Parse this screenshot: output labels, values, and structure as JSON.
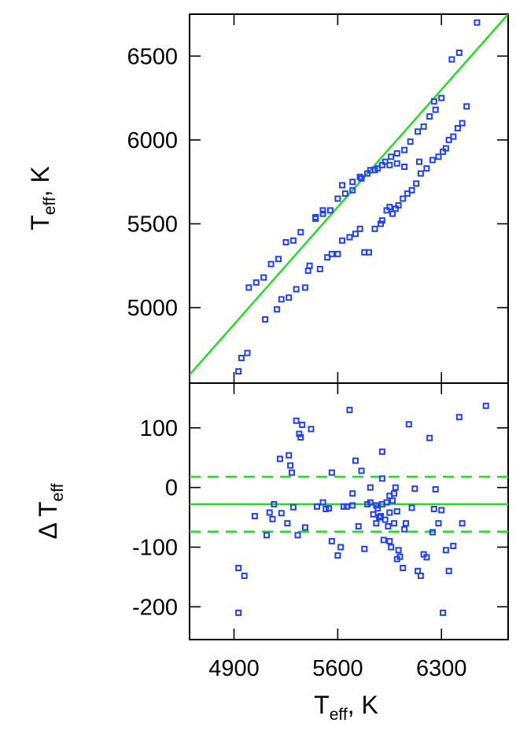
{
  "chart_data": [
    {
      "type": "scatter",
      "panel": "top",
      "ylabel": "T_eff, K",
      "ylabel_main": "T",
      "ylabel_sub": "eff",
      "ylabel_rest": ", K",
      "xlim": [
        4600,
        6750
      ],
      "ylim": [
        4550,
        6750
      ],
      "yticks": [
        "5000",
        "5500",
        "6000",
        "6500"
      ],
      "ytick_values": [
        5000,
        5500,
        6000,
        6500
      ],
      "line": {
        "type": "one-to-one",
        "color": "#22dd22"
      },
      "marker_color": "#1f3fff",
      "series": [
        {
          "x": [
            4930,
            4950,
            4990,
            5110,
            5190,
            5220,
            5270,
            5320,
            5380,
            5400,
            5410,
            5480,
            5530,
            5560,
            5600,
            5630,
            5680,
            5720,
            5750,
            5780,
            5810,
            5850,
            5890,
            5900,
            5930,
            5950,
            5970,
            5990,
            6010,
            6040,
            6070,
            6100,
            6130,
            6160,
            6200,
            6240,
            6280,
            6310,
            6330,
            6350,
            6380,
            6410,
            6440,
            6470,
            6540,
            5630,
            5700,
            5760,
            5820,
            5870,
            5920,
            5960,
            6000,
            6050,
            6090,
            6140,
            6180,
            6220,
            6260,
            6300,
            6150,
            6050,
            6000,
            5950,
            5900,
            5850,
            5800,
            5750,
            5700,
            5650,
            5600,
            5550,
            5500,
            5450,
            5350,
            5300,
            5250,
            5200,
            5150,
            5100,
            5050,
            5000,
            5450,
            5500,
            6250,
            6370,
            6420
          ],
          "y": [
            4620,
            4700,
            4730,
            4930,
            4990,
            5050,
            5060,
            5110,
            5120,
            5220,
            5250,
            5230,
            5300,
            5320,
            5320,
            5400,
            5420,
            5440,
            5470,
            5330,
            5330,
            5470,
            5500,
            5520,
            5580,
            5600,
            5560,
            5590,
            5610,
            5650,
            5680,
            5700,
            5740,
            5800,
            5830,
            5880,
            5900,
            5930,
            5950,
            6000,
            6020,
            6070,
            6100,
            6200,
            6700,
            5730,
            5750,
            5770,
            5820,
            5830,
            5870,
            5900,
            5920,
            5940,
            5990,
            6050,
            6080,
            6140,
            6180,
            6250,
            5870,
            5840,
            5860,
            5850,
            5850,
            5820,
            5800,
            5780,
            5700,
            5680,
            5650,
            5580,
            5560,
            5530,
            5450,
            5400,
            5390,
            5290,
            5260,
            5180,
            5150,
            5120,
            5540,
            5580,
            6230,
            6480,
            6520
          ]
        }
      ]
    },
    {
      "type": "scatter",
      "panel": "bottom",
      "xlabel": "T_eff, K",
      "xlabel_main": "T",
      "xlabel_sub": "eff",
      "xlabel_rest": ", K",
      "ylabel": "Δ T_eff",
      "ylabel_main": "Δ T",
      "ylabel_sub": "eff",
      "xlim": [
        4600,
        6750
      ],
      "ylim": [
        -255,
        175
      ],
      "xticks": [
        "4900",
        "5600",
        "6300"
      ],
      "xtick_values": [
        4900,
        5600,
        6300
      ],
      "yticks": [
        "-200",
        "-100",
        "0",
        "100"
      ],
      "ytick_values": [
        -200,
        -100,
        0,
        100
      ],
      "hlines": [
        {
          "y": -28,
          "style": "solid",
          "color": "#22dd22"
        },
        {
          "y": 18,
          "style": "dashed",
          "color": "#22dd22"
        },
        {
          "y": -74,
          "style": "dashed",
          "color": "#22dd22"
        }
      ],
      "marker_color": "#1f3fff",
      "series": [
        {
          "x": [
            4930,
            4930,
            4970,
            5040,
            5120,
            5140,
            5160,
            5170,
            5210,
            5220,
            5260,
            5270,
            5280,
            5290,
            5300,
            5320,
            5330,
            5340,
            5350,
            5360,
            5380,
            5420,
            5460,
            5500,
            5520,
            5540,
            5560,
            5600,
            5620,
            5640,
            5660,
            5680,
            5700,
            5720,
            5740,
            5760,
            5780,
            5800,
            5820,
            5840,
            5860,
            5870,
            5880,
            5890,
            5900,
            5900,
            5910,
            5920,
            5930,
            5940,
            5950,
            5960,
            5970,
            5980,
            5990,
            6000,
            6010,
            6020,
            6040,
            6060,
            6080,
            6100,
            6120,
            6140,
            6160,
            6180,
            6200,
            6220,
            6240,
            6260,
            6280,
            6300,
            6330,
            6350,
            6380,
            6420,
            6440,
            6600,
            5560,
            5700,
            5820,
            5900,
            5950,
            6000,
            5860,
            5950,
            6050,
            6250,
            6310,
            5980
          ],
          "y": [
            -135,
            -210,
            -148,
            -48,
            -80,
            -42,
            -53,
            -28,
            48,
            -43,
            -60,
            54,
            37,
            25,
            -33,
            112,
            -80,
            90,
            84,
            105,
            -67,
            98,
            -32,
            -25,
            -36,
            -35,
            25,
            -114,
            -100,
            -32,
            -32,
            130,
            -30,
            45,
            -65,
            28,
            -103,
            -28,
            -25,
            -45,
            -30,
            -35,
            -50,
            -48,
            60,
            15,
            -88,
            -54,
            -25,
            -65,
            -14,
            -100,
            -22,
            -60,
            0,
            -120,
            -105,
            -116,
            -135,
            -60,
            106,
            -34,
            -2,
            -140,
            -148,
            -112,
            -117,
            83,
            -75,
            -3,
            -60,
            -38,
            -105,
            -140,
            -98,
            118,
            -60,
            137,
            -90,
            -10,
            0,
            -28,
            -42,
            -40,
            -60,
            -90,
            -70,
            -36,
            -210,
            -10
          ]
        }
      ]
    }
  ]
}
